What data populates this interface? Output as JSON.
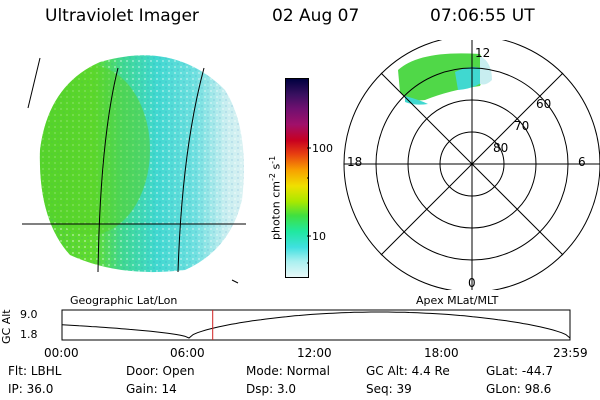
{
  "header": {
    "instrument": "Ultraviolet Imager",
    "date": "02 Aug 07",
    "time": "07:06:55 UT"
  },
  "colorbar": {
    "label": "photon cm",
    "label_sup1": "-2",
    "label_mid": "s",
    "label_sup2": "-1",
    "ticks": [
      "100",
      "10"
    ],
    "colors": [
      "#000040",
      "#3a1060",
      "#701070",
      "#a0106a",
      "#c80020",
      "#e84010",
      "#f8a000",
      "#f0e000",
      "#a8e800",
      "#40e040",
      "#20e8a0",
      "#40e0e0",
      "#a8f0f0",
      "#e8f8f8"
    ]
  },
  "polar": {
    "mlt_labels": {
      "top": "12",
      "left": "18",
      "right": "6",
      "bottom": "0"
    },
    "lat_labels": [
      "60",
      "70",
      "80"
    ]
  },
  "altitude_plot": {
    "ylabel": "GC Alt",
    "yticks": [
      "9.0",
      "1.8"
    ],
    "left_title": "Geographic Lat/Lon",
    "right_title": "Apex MLat/MLT",
    "xticks": [
      "00:00",
      "06:00",
      "12:00",
      "18:00",
      "23:59"
    ],
    "current_time_hours": 7.12
  },
  "info": {
    "row1": [
      {
        "label": "Flt:",
        "value": "LBHL"
      },
      {
        "label": "Door:",
        "value": "Open"
      },
      {
        "label": "Mode:",
        "value": "Normal"
      },
      {
        "label": "GC Alt:",
        "value": "4.4 Re"
      },
      {
        "label": "GLat:",
        "value": "-44.7"
      }
    ],
    "row2": [
      {
        "label": "IP:",
        "value": "36.0"
      },
      {
        "label": "Gain:",
        "value": "14"
      },
      {
        "label": "Dsp:",
        "value": "3.0"
      },
      {
        "label": "Seq:",
        "value": "39"
      },
      {
        "label": "GLon:",
        "value": "98.6"
      }
    ]
  }
}
